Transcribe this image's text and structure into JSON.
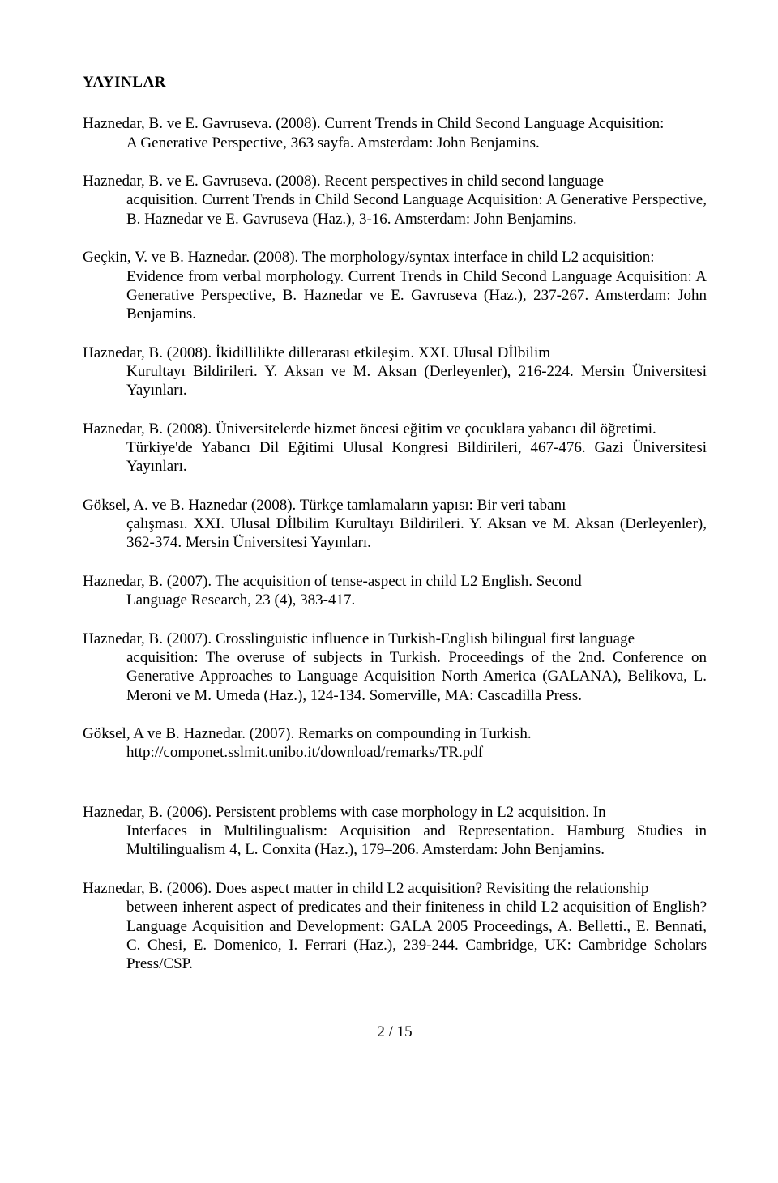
{
  "heading": "YAYINLAR",
  "entries": [
    {
      "first": "Haznedar, B. ve E. Gavruseva. (2008). Current Trends in Child Second Language Acquisition:",
      "cont": "A Generative Perspective, 363 sayfa. Amsterdam: John Benjamins."
    },
    {
      "first": "Haznedar, B. ve E. Gavruseva. (2008). Recent perspectives in child second language",
      "cont": "acquisition. Current Trends in Child Second Language Acquisition: A Generative Perspective, B. Haznedar ve E. Gavruseva (Haz.), 3-16. Amsterdam: John Benjamins."
    },
    {
      "first": "Geçkin, V. ve B. Haznedar. (2008). The morphology/syntax interface in child L2 acquisition:",
      "cont": "Evidence from verbal morphology. Current Trends in Child Second Language Acquisition: A Generative Perspective, B. Haznedar ve E. Gavruseva (Haz.), 237-267. Amsterdam: John Benjamins."
    },
    {
      "first": "Haznedar, B. (2008). İkidillilikte dillerarası etkileşim.  XXI. Ulusal Dİlbilim",
      "cont": "Kurultayı Bildirileri. Y. Aksan ve M. Aksan (Derleyenler), 216-224. Mersin Üniversitesi Yayınları."
    },
    {
      "first": "Haznedar, B. (2008). Üniversitelerde hizmet öncesi eğitim ve çocuklara yabancı dil öğretimi.",
      "cont": "Türkiye'de Yabancı Dil Eğitimi Ulusal Kongresi Bildirileri, 467-476. Gazi Üniversitesi Yayınları."
    },
    {
      "first": "Göksel, A. ve B. Haznedar (2008). Türkçe tamlamaların yapısı: Bir veri tabanı",
      "cont": "çalışması.  XXI. Ulusal Dİlbilim Kurultayı Bildirileri. Y. Aksan ve M. Aksan (Derleyenler), 362-374. Mersin Üniversitesi Yayınları."
    },
    {
      "first": "Haznedar, B. (2007). The acquisition of tense-aspect in child L2 English.  Second",
      "cont": "Language Research, 23 (4), 383-417."
    },
    {
      "first": "Haznedar, B. (2007).  Crosslinguistic influence in Turkish-English bilingual first language",
      "cont": "acquisition: The overuse of subjects in Turkish.  Proceedings of the 2nd. Conference on Generative Approaches to Language Acquisition North America (GALANA), Belikova, L. Meroni ve M. Umeda (Haz.), 124-134. Somerville, MA: Cascadilla Press."
    },
    {
      "first": "Göksel, A ve B. Haznedar. (2007). Remarks on compounding in Turkish.",
      "cont": "http://componet.sslmit.unibo.it/download/remarks/TR.pdf"
    },
    {
      "first": "Haznedar, B. (2006). Persistent problems with case morphology in L2 acquisition.  In",
      "cont": "Interfaces in Multilingualism: Acquisition and Representation. Hamburg Studies in Multilingualism 4, L. Conxita (Haz.), 179–206. Amsterdam: John Benjamins."
    },
    {
      "first": "Haznedar, B. (2006). Does aspect matter in child L2 acquisition? Revisiting the relationship",
      "cont": "between inherent aspect of predicates and their finiteness in child L2 acquisition of English?  Language Acquisition and Development: GALA 2005 Proceedings, A. Belletti., E. Bennati, C. Chesi, E. Domenico, I. Ferrari (Haz.), 239-244. Cambridge, UK: Cambridge Scholars Press/CSP."
    }
  ],
  "spacer_after": [
    8
  ],
  "footer": "2 / 15"
}
